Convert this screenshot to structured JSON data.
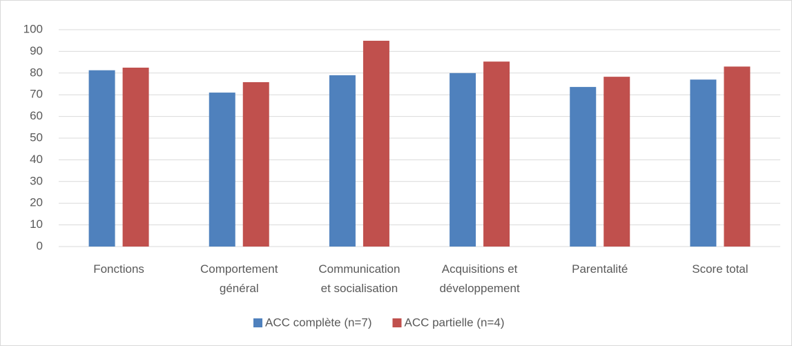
{
  "chart_data": {
    "type": "bar",
    "categories": [
      "Fonctions",
      "Comportement\ngénéral",
      "Communication\net socialisation",
      "Acquisitions et\ndéveloppement",
      "Parentalité",
      "Score total"
    ],
    "series": [
      {
        "name": "ACC complète (n=7)",
        "color": "#4f81bd",
        "values": [
          81.3,
          71,
          79,
          80,
          73.6,
          77
        ]
      },
      {
        "name": "ACC partielle (n=4)",
        "color": "#c0504d",
        "values": [
          82.5,
          75.8,
          94.9,
          85.3,
          78.3,
          83
        ]
      }
    ],
    "ylim": [
      0,
      100
    ],
    "yticks": [
      0,
      10,
      20,
      30,
      40,
      50,
      60,
      70,
      80,
      90,
      100
    ],
    "grid": true,
    "legend": "bottom"
  }
}
